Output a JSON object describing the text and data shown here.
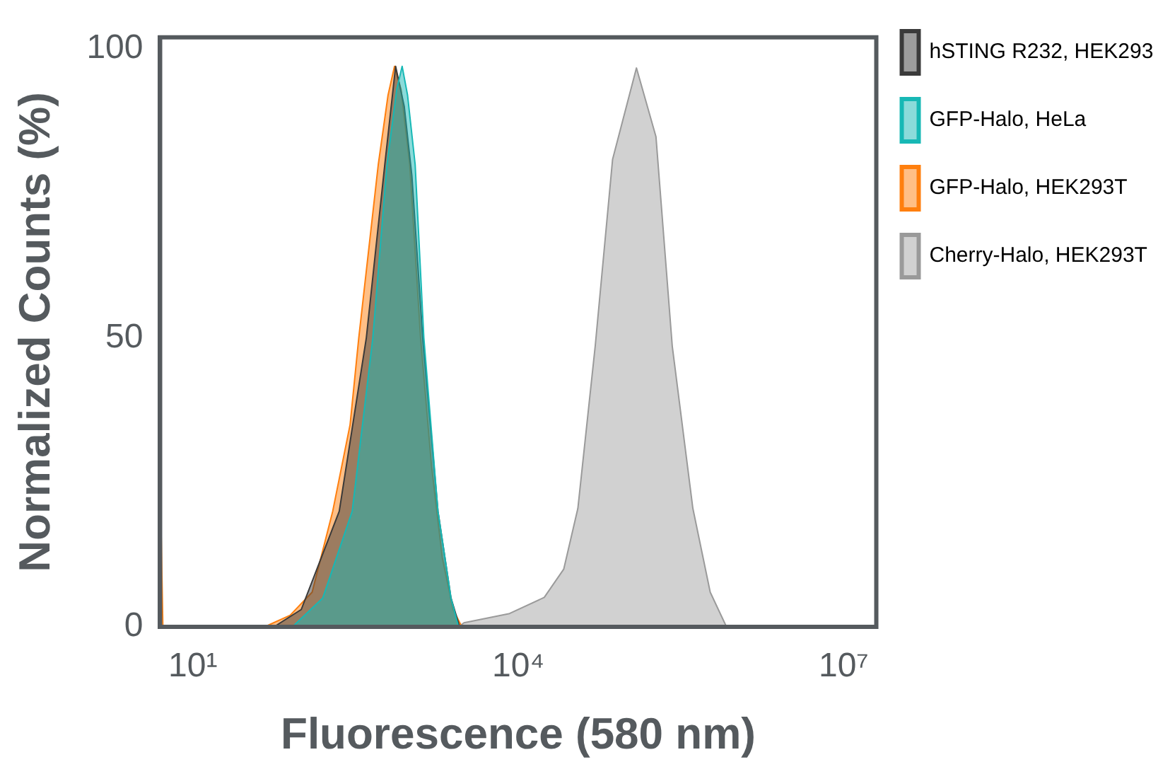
{
  "chart_data": {
    "type": "area",
    "xlabel": "Fluorescence (580 nm)",
    "ylabel": "Normalized Counts (%)",
    "log": "x",
    "grid": false,
    "legend": "right",
    "marker": "none",
    "xlim": [
      5,
      20000000
    ],
    "xticks": [
      {
        "value": 10,
        "label": "10¹"
      },
      {
        "value": 10000,
        "label": "10⁴"
      },
      {
        "value": 10000000,
        "label": "10⁷"
      }
    ],
    "ylim": [
      0,
      102
    ],
    "yticks": [
      0,
      50,
      100
    ],
    "series": [
      {
        "name": "hSTING R232, HEK293",
        "color": "#3a3a3a",
        "x": [
          56,
          100,
          224,
          398,
          589,
          741,
          891,
          1047,
          1318,
          1820,
          2399,
          2884
        ],
        "values": [
          0,
          3,
          20,
          50,
          80,
          97,
          90,
          78,
          50,
          20,
          5,
          0
        ]
      },
      {
        "name": "GFP-Halo, HeLa",
        "color": "#17b8b5",
        "x": [
          83,
          158,
          295,
          457,
          617,
          759,
          851,
          955,
          1122,
          1349,
          1820,
          2399,
          2818
        ],
        "values": [
          0,
          5,
          20,
          50,
          80,
          93,
          97,
          92,
          80,
          50,
          20,
          5,
          0
        ]
      },
      {
        "name": "GFP-Halo, HEK293T",
        "color": "#ff7f0e",
        "x": [
          5,
          5.3,
          46,
          79,
          126,
          195,
          282,
          339,
          417,
          513,
          631,
          724,
          832,
          1000,
          1259,
          1585,
          1995,
          2512,
          3020
        ],
        "values": [
          26,
          0,
          0,
          2,
          6,
          20,
          35,
          50,
          65,
          80,
          92,
          97,
          93,
          80,
          50,
          28,
          12,
          3,
          0
        ]
      },
      {
        "name": "Cherry-Halo, HEK293T",
        "color": "#9a9a9a",
        "x": [
          2818,
          3162,
          8318,
          17378,
          26303,
          35481,
          51286,
          74131,
          123027,
          186209,
          263027,
          407380,
          588844,
          831764
        ],
        "values": [
          0,
          0.7,
          2.3,
          5.1,
          10,
          20.5,
          48.6,
          80.9,
          96.7,
          84.8,
          48.6,
          20.5,
          6,
          0
        ]
      }
    ]
  }
}
